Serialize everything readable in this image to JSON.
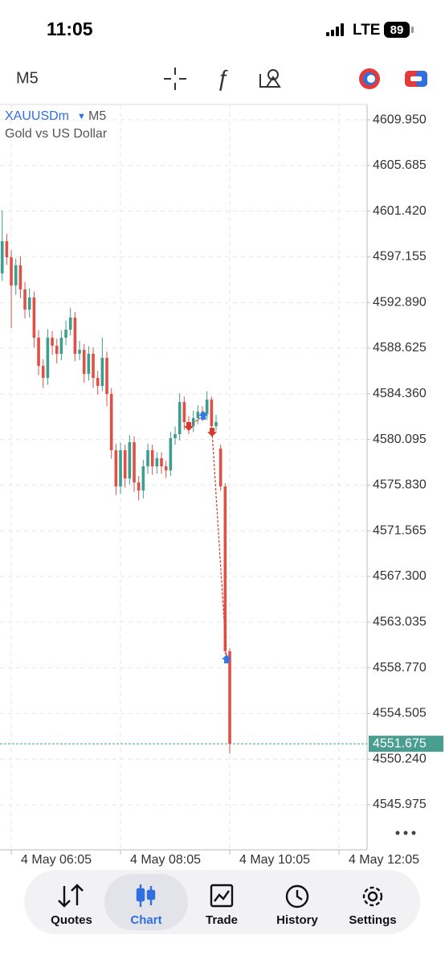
{
  "status_bar": {
    "time": "11:05",
    "network": "LTE",
    "battery": "89"
  },
  "toolbar": {
    "timeframe": "M5"
  },
  "chart_data": {
    "type": "candlestick",
    "symbol": "XAUUSDm",
    "symbol_timeframe": "M5",
    "subtitle": "Gold vs US Dollar",
    "xlim": [
      352.6,
      755.9
    ],
    "xticks": [
      {
        "value": 365,
        "label": "4 May 06:05"
      },
      {
        "value": 485,
        "label": "4 May 08:05"
      },
      {
        "value": 605,
        "label": "4 May 10:05"
      },
      {
        "value": 725,
        "label": "4 May 12:05"
      }
    ],
    "ylim": [
      4541.77,
      4611.38
    ],
    "yticks": [
      {
        "value": 4609.95,
        "label": "4609.950"
      },
      {
        "value": 4605.685,
        "label": "4605.685"
      },
      {
        "value": 4601.42,
        "label": "4601.420"
      },
      {
        "value": 4597.155,
        "label": "4597.155"
      },
      {
        "value": 4592.89,
        "label": "4592.890"
      },
      {
        "value": 4588.625,
        "label": "4588.625"
      },
      {
        "value": 4584.36,
        "label": "4584.360"
      },
      {
        "value": 4580.095,
        "label": "4580.095"
      },
      {
        "value": 4575.83,
        "label": "4575.830"
      },
      {
        "value": 4571.565,
        "label": "4571.565"
      },
      {
        "value": 4567.3,
        "label": "4567.300"
      },
      {
        "value": 4563.035,
        "label": "4563.035"
      },
      {
        "value": 4558.77,
        "label": "4558.770"
      },
      {
        "value": 4554.505,
        "label": "4554.505"
      },
      {
        "value": 4550.24,
        "label": "4550.240"
      },
      {
        "value": 4545.975,
        "label": "4545.975"
      }
    ],
    "grid": true,
    "series": [
      {
        "up_color": "#3d9d8e",
        "down_color": "#df5047",
        "x": [
          355,
          360,
          365,
          370,
          375,
          380,
          385,
          390,
          395,
          400,
          405,
          410,
          415,
          420,
          425,
          430,
          435,
          440,
          445,
          450,
          455,
          460,
          465,
          470,
          475,
          480,
          485,
          490,
          495,
          500,
          505,
          510,
          515,
          520,
          525,
          530,
          535,
          540,
          545,
          550,
          555,
          560,
          565,
          570,
          575,
          580,
          585,
          590,
          595,
          600,
          605
        ],
        "open": [
          4595.61,
          4598.61,
          4597.11,
          4594.48,
          4596.36,
          4594.11,
          4592.23,
          4593.36,
          4589.6,
          4586.97,
          4585.85,
          4589.6,
          4588.85,
          4588.1,
          4589.6,
          4590.35,
          4591.48,
          4588.1,
          4588.47,
          4586.22,
          4588.1,
          4585.85,
          4585.1,
          4587.72,
          4584.34,
          4579.09,
          4575.71,
          4579.09,
          4576.46,
          4579.84,
          4576.08,
          4575.33,
          4577.59,
          4579.09,
          4577.59,
          4578.34,
          4577.59,
          4577.21,
          4580.21,
          4580.59,
          4583.59,
          4581.72,
          4581.34,
          4582.09,
          4582.69,
          4582.47,
          4583.82,
          4581.34,
          4579.24,
          4575.71,
          4560.32
        ],
        "high": [
          4601.5,
          4599.3,
          4597.8,
          4597.0,
          4597.2,
          4594.8,
          4594.2,
          4593.9,
          4590.3,
          4587.6,
          4590.4,
          4590.2,
          4589.5,
          4590.3,
          4591.2,
          4592.4,
          4592.0,
          4589.3,
          4589.0,
          4588.8,
          4588.7,
          4586.5,
          4589.6,
          4588.3,
          4584.9,
          4579.7,
          4579.8,
          4579.6,
          4580.5,
          4580.4,
          4576.7,
          4578.2,
          4579.7,
          4579.6,
          4578.9,
          4578.9,
          4578.1,
          4580.8,
          4581.3,
          4584.4,
          4584.1,
          4582.3,
          4582.8,
          4583.3,
          4583.2,
          4584.6,
          4584.1,
          4582.4,
          4579.6,
          4576.0,
          4560.6
        ],
        "low": [
          4594.9,
          4596.4,
          4590.5,
          4593.6,
          4593.3,
          4591.4,
          4591.5,
          4588.7,
          4586.1,
          4584.9,
          4585.2,
          4588.0,
          4587.2,
          4587.5,
          4588.9,
          4589.8,
          4587.4,
          4587.5,
          4585.4,
          4585.6,
          4584.9,
          4584.3,
          4584.6,
          4583.2,
          4578.3,
          4574.9,
          4575.0,
          4575.6,
          4575.9,
          4575.2,
          4574.4,
          4574.6,
          4576.9,
          4576.8,
          4576.9,
          4576.9,
          4576.5,
          4576.7,
          4579.6,
          4580.0,
          4581.0,
          4580.6,
          4580.8,
          4581.5,
          4581.8,
          4581.9,
          4580.5,
          4580.9,
          4575.3,
          4560.0,
          4550.78
        ],
        "close": [
          4598.61,
          4597.11,
          4594.48,
          4596.36,
          4594.11,
          4592.23,
          4593.36,
          4589.6,
          4586.97,
          4585.85,
          4589.6,
          4588.85,
          4588.1,
          4589.6,
          4590.35,
          4591.48,
          4588.1,
          4588.47,
          4586.22,
          4588.1,
          4585.85,
          4585.1,
          4587.72,
          4584.34,
          4579.09,
          4575.71,
          4579.09,
          4576.46,
          4579.84,
          4576.08,
          4575.33,
          4577.59,
          4579.09,
          4577.59,
          4578.34,
          4577.59,
          4577.21,
          4580.21,
          4580.59,
          4583.59,
          4581.72,
          4581.34,
          4582.09,
          4582.69,
          4582.47,
          4583.82,
          4581.34,
          4581.72,
          4575.71,
          4560.32,
          4551.675
        ]
      }
    ],
    "markers": [
      {
        "x": 560,
        "y": 4581.34,
        "color": "#d9382c",
        "direction": "down"
      },
      {
        "x": 576,
        "y": 4582.31,
        "color": "#2f7ae5",
        "direction": "up"
      },
      {
        "x": 585.6,
        "y": 4580.81,
        "color": "#d9382c",
        "direction": "down"
      },
      {
        "x": 601.5,
        "y": 4559.56,
        "color": "#2f7ae5",
        "direction": "up"
      }
    ],
    "current_price": {
      "value": 4551.675,
      "label": "4551.675",
      "color": "#4a9e90"
    }
  },
  "tab_bar": {
    "tabs": [
      "Quotes",
      "Chart",
      "Trade",
      "History",
      "Settings"
    ],
    "active": 1
  }
}
